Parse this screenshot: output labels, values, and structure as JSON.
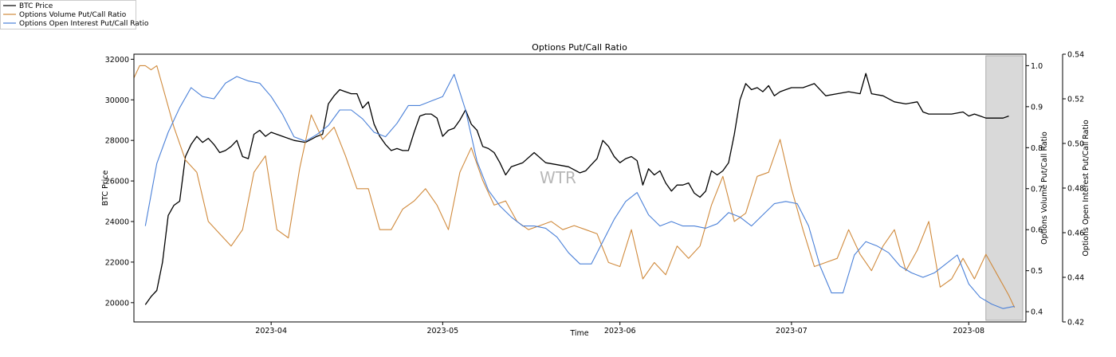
{
  "chart_data": {
    "type": "line",
    "title": "Options Put/Call Ratio",
    "xlabel": "Time",
    "x_range": [
      "2023-03-08",
      "2023-08-11"
    ],
    "x_ticks": [
      "2023-04",
      "2023-05",
      "2023-06",
      "2023-07",
      "2023-08"
    ],
    "x_tick_dates": [
      "2023-04-01",
      "2023-05-01",
      "2023-06-01",
      "2023-07-01",
      "2023-08-01"
    ],
    "axes": {
      "left": {
        "label": "BTC Price",
        "range": [
          19050,
          32250
        ],
        "ticks": [
          20000,
          22000,
          24000,
          26000,
          28000,
          30000,
          32000
        ]
      },
      "right1": {
        "label": "Options Volume Put/Call Ratio",
        "range": [
          0.375,
          1.028
        ],
        "ticks": [
          0.4,
          0.5,
          0.6,
          0.7,
          0.8,
          0.9,
          1.0
        ],
        "tick_labels": [
          "0.4",
          "0.5",
          "0.6",
          "0.7",
          "0.8",
          "0.9",
          "1.0"
        ]
      },
      "right2": {
        "label": "Options Open Interest Put/Call Ratio",
        "range": [
          0.42,
          0.54
        ],
        "ticks": [
          0.42,
          0.44,
          0.46,
          0.48,
          0.5,
          0.52,
          0.54
        ],
        "tick_labels": [
          "0.42",
          "0.44",
          "0.46",
          "0.48",
          "0.50",
          "0.52",
          "0.54"
        ]
      }
    },
    "legend_position": "top-left",
    "watermark": "WTR",
    "highlight_range": [
      "2023-08-04",
      "2023-08-11"
    ],
    "grid": false,
    "series": [
      {
        "name": "BTC Price",
        "axis": "left",
        "color": "#000000",
        "x": [
          "2023-03-10",
          "2023-03-11",
          "2023-03-12",
          "2023-03-13",
          "2023-03-14",
          "2023-03-15",
          "2023-03-16",
          "2023-03-17",
          "2023-03-18",
          "2023-03-19",
          "2023-03-20",
          "2023-03-21",
          "2023-03-22",
          "2023-03-23",
          "2023-03-24",
          "2023-03-25",
          "2023-03-26",
          "2023-03-27",
          "2023-03-28",
          "2023-03-29",
          "2023-03-30",
          "2023-03-31",
          "2023-04-01",
          "2023-04-03",
          "2023-04-05",
          "2023-04-07",
          "2023-04-09",
          "2023-04-10",
          "2023-04-11",
          "2023-04-12",
          "2023-04-13",
          "2023-04-14",
          "2023-04-15",
          "2023-04-16",
          "2023-04-17",
          "2023-04-18",
          "2023-04-19",
          "2023-04-20",
          "2023-04-21",
          "2023-04-22",
          "2023-04-23",
          "2023-04-24",
          "2023-04-25",
          "2023-04-26",
          "2023-04-27",
          "2023-04-28",
          "2023-04-29",
          "2023-04-30",
          "2023-05-01",
          "2023-05-02",
          "2023-05-03",
          "2023-05-04",
          "2023-05-05",
          "2023-05-06",
          "2023-05-07",
          "2023-05-08",
          "2023-05-09",
          "2023-05-10",
          "2023-05-11",
          "2023-05-12",
          "2023-05-13",
          "2023-05-15",
          "2023-05-17",
          "2023-05-19",
          "2023-05-21",
          "2023-05-23",
          "2023-05-25",
          "2023-05-26",
          "2023-05-27",
          "2023-05-28",
          "2023-05-29",
          "2023-05-30",
          "2023-05-31",
          "2023-06-01",
          "2023-06-02",
          "2023-06-03",
          "2023-06-04",
          "2023-06-05",
          "2023-06-06",
          "2023-06-07",
          "2023-06-08",
          "2023-06-09",
          "2023-06-10",
          "2023-06-11",
          "2023-06-12",
          "2023-06-13",
          "2023-06-14",
          "2023-06-15",
          "2023-06-16",
          "2023-06-17",
          "2023-06-18",
          "2023-06-19",
          "2023-06-20",
          "2023-06-21",
          "2023-06-22",
          "2023-06-23",
          "2023-06-24",
          "2023-06-25",
          "2023-06-26",
          "2023-06-27",
          "2023-06-28",
          "2023-06-29",
          "2023-06-30",
          "2023-07-01",
          "2023-07-03",
          "2023-07-05",
          "2023-07-07",
          "2023-07-09",
          "2023-07-11",
          "2023-07-13",
          "2023-07-14",
          "2023-07-15",
          "2023-07-17",
          "2023-07-19",
          "2023-07-21",
          "2023-07-23",
          "2023-07-24",
          "2023-07-25",
          "2023-07-27",
          "2023-07-29",
          "2023-07-31",
          "2023-08-01",
          "2023-08-02",
          "2023-08-03",
          "2023-08-04",
          "2023-08-05",
          "2023-08-07",
          "2023-08-08"
        ],
        "values": [
          19900,
          20300,
          20600,
          22000,
          24300,
          24800,
          25000,
          27200,
          27800,
          28200,
          27900,
          28100,
          27800,
          27400,
          27500,
          27700,
          28000,
          27200,
          27100,
          28300,
          28500,
          28200,
          28400,
          28200,
          28000,
          27900,
          28200,
          28300,
          29800,
          30200,
          30500,
          30400,
          30300,
          30300,
          29600,
          29900,
          28800,
          28200,
          27800,
          27500,
          27600,
          27500,
          27500,
          28400,
          29200,
          29300,
          29300,
          29100,
          28200,
          28500,
          28600,
          29000,
          29500,
          28800,
          28500,
          27700,
          27600,
          27400,
          26900,
          26300,
          26700,
          26900,
          27400,
          26900,
          26800,
          26700,
          26400,
          26500,
          26800,
          27100,
          28000,
          27700,
          27200,
          26900,
          27100,
          27200,
          27000,
          25800,
          26600,
          26300,
          26500,
          25900,
          25500,
          25800,
          25800,
          25900,
          25400,
          25200,
          25500,
          26500,
          26300,
          26500,
          26900,
          28300,
          30000,
          30800,
          30500,
          30600,
          30400,
          30700,
          30200,
          30400,
          30500,
          30600,
          30600,
          30800,
          30200,
          30300,
          30400,
          30300,
          31300,
          30300,
          30200,
          29900,
          29800,
          29900,
          29400,
          29300,
          29300,
          29300,
          29400,
          29200,
          29300,
          29200,
          29100,
          29100,
          29100,
          29200
        ]
      },
      {
        "name": "Options Volume Put/Call Ratio",
        "axis": "right1",
        "color": "#d08a3c",
        "x": [
          "2023-03-08",
          "2023-03-09",
          "2023-03-10",
          "2023-03-11",
          "2023-03-12",
          "2023-03-13",
          "2023-03-15",
          "2023-03-17",
          "2023-03-19",
          "2023-03-21",
          "2023-03-23",
          "2023-03-25",
          "2023-03-27",
          "2023-03-29",
          "2023-03-31",
          "2023-04-02",
          "2023-04-04",
          "2023-04-06",
          "2023-04-08",
          "2023-04-10",
          "2023-04-12",
          "2023-04-14",
          "2023-04-16",
          "2023-04-18",
          "2023-04-20",
          "2023-04-22",
          "2023-04-24",
          "2023-04-26",
          "2023-04-28",
          "2023-04-30",
          "2023-05-02",
          "2023-05-04",
          "2023-05-06",
          "2023-05-08",
          "2023-05-10",
          "2023-05-12",
          "2023-05-14",
          "2023-05-16",
          "2023-05-18",
          "2023-05-20",
          "2023-05-22",
          "2023-05-24",
          "2023-05-26",
          "2023-05-28",
          "2023-05-30",
          "2023-06-01",
          "2023-06-03",
          "2023-06-05",
          "2023-06-07",
          "2023-06-09",
          "2023-06-11",
          "2023-06-13",
          "2023-06-15",
          "2023-06-17",
          "2023-06-19",
          "2023-06-21",
          "2023-06-23",
          "2023-06-25",
          "2023-06-27",
          "2023-06-29",
          "2023-07-01",
          "2023-07-03",
          "2023-07-05",
          "2023-07-07",
          "2023-07-09",
          "2023-07-11",
          "2023-07-13",
          "2023-07-15",
          "2023-07-17",
          "2023-07-19",
          "2023-07-21",
          "2023-07-23",
          "2023-07-25",
          "2023-07-27",
          "2023-07-29",
          "2023-07-31",
          "2023-08-02",
          "2023-08-04",
          "2023-08-06",
          "2023-08-08",
          "2023-08-09"
        ],
        "values": [
          0.97,
          1.0,
          1.0,
          0.99,
          1.0,
          0.95,
          0.85,
          0.77,
          0.74,
          0.62,
          0.59,
          0.56,
          0.6,
          0.74,
          0.78,
          0.6,
          0.58,
          0.75,
          0.88,
          0.82,
          0.85,
          0.78,
          0.7,
          0.7,
          0.6,
          0.6,
          0.65,
          0.67,
          0.7,
          0.66,
          0.6,
          0.74,
          0.8,
          0.72,
          0.66,
          0.67,
          0.62,
          0.6,
          0.61,
          0.62,
          0.6,
          0.61,
          0.6,
          0.59,
          0.52,
          0.51,
          0.6,
          0.48,
          0.52,
          0.49,
          0.56,
          0.53,
          0.56,
          0.66,
          0.73,
          0.62,
          0.64,
          0.73,
          0.74,
          0.82,
          0.7,
          0.6,
          0.51,
          0.52,
          0.53,
          0.6,
          0.54,
          0.5,
          0.56,
          0.6,
          0.5,
          0.55,
          0.62,
          0.46,
          0.48,
          0.53,
          0.48,
          0.54,
          0.49,
          0.44,
          0.41
        ],
        "values_shift_note": ""
      },
      {
        "name": "Options Open Interest Put/Call Ratio",
        "axis": "right2",
        "color": "#4a80d8",
        "x": [
          "2023-03-10",
          "2023-03-12",
          "2023-03-14",
          "2023-03-16",
          "2023-03-18",
          "2023-03-20",
          "2023-03-22",
          "2023-03-24",
          "2023-03-26",
          "2023-03-28",
          "2023-03-30",
          "2023-04-01",
          "2023-04-03",
          "2023-04-05",
          "2023-04-07",
          "2023-04-09",
          "2023-04-11",
          "2023-04-13",
          "2023-04-15",
          "2023-04-17",
          "2023-04-19",
          "2023-04-21",
          "2023-04-23",
          "2023-04-25",
          "2023-04-27",
          "2023-04-29",
          "2023-05-01",
          "2023-05-03",
          "2023-05-05",
          "2023-05-07",
          "2023-05-09",
          "2023-05-11",
          "2023-05-13",
          "2023-05-15",
          "2023-05-17",
          "2023-05-19",
          "2023-05-21",
          "2023-05-23",
          "2023-05-25",
          "2023-05-27",
          "2023-05-29",
          "2023-05-31",
          "2023-06-02",
          "2023-06-04",
          "2023-06-06",
          "2023-06-08",
          "2023-06-10",
          "2023-06-12",
          "2023-06-14",
          "2023-06-16",
          "2023-06-18",
          "2023-06-20",
          "2023-06-22",
          "2023-06-24",
          "2023-06-26",
          "2023-06-28",
          "2023-06-30",
          "2023-07-02",
          "2023-07-04",
          "2023-07-06",
          "2023-07-08",
          "2023-07-10",
          "2023-07-12",
          "2023-07-14",
          "2023-07-16",
          "2023-07-18",
          "2023-07-20",
          "2023-07-22",
          "2023-07-24",
          "2023-07-26",
          "2023-07-28",
          "2023-07-30",
          "2023-08-01",
          "2023-08-03",
          "2023-08-05",
          "2023-08-07",
          "2023-08-09"
        ],
        "values": [
          0.463,
          0.491,
          0.505,
          0.516,
          0.525,
          0.521,
          0.52,
          0.527,
          0.53,
          0.528,
          0.527,
          0.521,
          0.513,
          0.503,
          0.501,
          0.504,
          0.508,
          0.515,
          0.515,
          0.511,
          0.505,
          0.503,
          0.509,
          0.517,
          0.517,
          0.519,
          0.521,
          0.531,
          0.515,
          0.492,
          0.479,
          0.472,
          0.467,
          0.463,
          0.463,
          0.462,
          0.458,
          0.451,
          0.446,
          0.446,
          0.456,
          0.466,
          0.474,
          0.478,
          0.468,
          0.463,
          0.465,
          0.463,
          0.463,
          0.462,
          0.464,
          0.469,
          0.467,
          0.463,
          0.468,
          0.473,
          0.474,
          0.473,
          0.463,
          0.445,
          0.433,
          0.433,
          0.45,
          0.456,
          0.454,
          0.451,
          0.445,
          0.442,
          0.44,
          0.442,
          0.446,
          0.45,
          0.437,
          0.431,
          0.428,
          0.426,
          0.427
        ]
      }
    ]
  }
}
